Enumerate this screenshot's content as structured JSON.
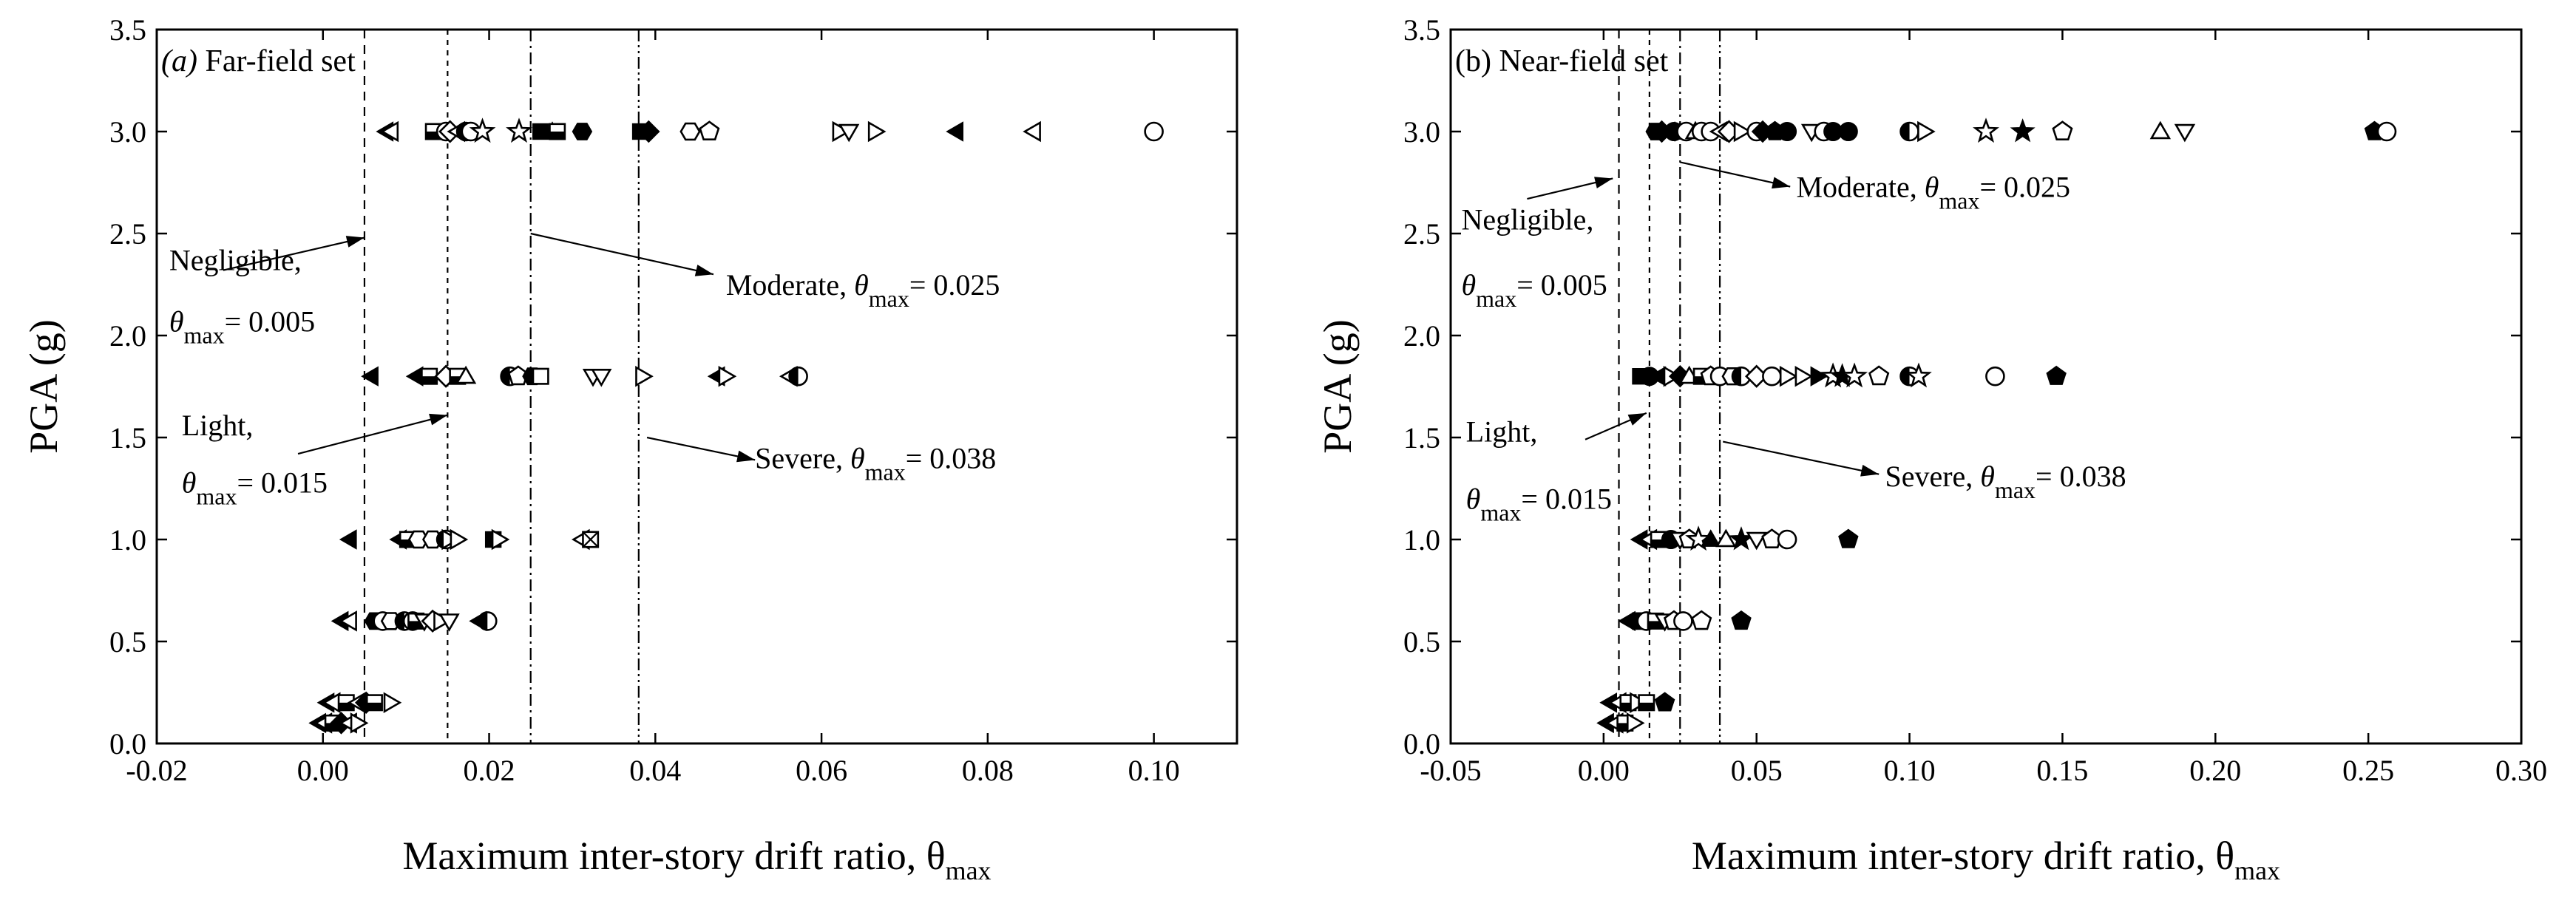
{
  "chart_data": [
    {
      "type": "scatter",
      "panel": "left",
      "title": "Far-field set",
      "title_prefix": "(a)",
      "xlabel": "Maximum inter-story drift ratio, θ",
      "xlabel_sub": "max",
      "ylabel": "PGA (g)",
      "xlim": [
        -0.02,
        0.11
      ],
      "ylim": [
        0.0,
        3.5
      ],
      "xticks": [
        -0.02,
        0.0,
        0.02,
        0.04,
        0.06,
        0.08,
        0.1
      ],
      "xtick_labels": [
        "-0.02",
        "0.00",
        "0.02",
        "0.04",
        "0.06",
        "0.08",
        "0.10"
      ],
      "yticks": [
        0.0,
        0.5,
        1.0,
        1.5,
        2.0,
        2.5,
        3.0,
        3.5
      ],
      "ytick_labels": [
        "0.0",
        "0.5",
        "1.0",
        "1.5",
        "2.0",
        "2.5",
        "3.0",
        "3.5"
      ],
      "thresholds": [
        {
          "name": "Negligible",
          "value": 0.005,
          "dash": "dash"
        },
        {
          "name": "Light",
          "value": 0.015,
          "dash": "dense-dash"
        },
        {
          "name": "Moderate",
          "value": 0.025,
          "dash": "dash-dot"
        },
        {
          "name": "Severe",
          "value": 0.038,
          "dash": "dash-dot-dot"
        }
      ],
      "annotations": [
        {
          "line1": "Negligible,",
          "theta": "θ",
          "sub": "max",
          "eq": "= 0.005",
          "layout": "stacked",
          "text_x": -0.0185,
          "text_y": 2.32,
          "theta_dy": 2.02,
          "arrow_from": [
            -0.012,
            2.32
          ],
          "arrow_to": [
            0.005,
            2.48
          ]
        },
        {
          "line1": "Light,",
          "theta": "θ",
          "sub": "max",
          "eq": "= 0.015",
          "layout": "stacked",
          "text_x": -0.017,
          "text_y": 1.51,
          "theta_dy": 1.23,
          "arrow_from": [
            -0.003,
            1.42
          ],
          "arrow_to": [
            0.015,
            1.61
          ]
        },
        {
          "line1": "Moderate, ",
          "theta": "θ",
          "sub": "max",
          "eq": "= 0.025",
          "layout": "inline",
          "text_x": 0.0485,
          "text_y": 2.2,
          "arrow_from": [
            0.025,
            2.5
          ],
          "arrow_to": [
            0.047,
            2.3
          ]
        },
        {
          "line1": "Severe, ",
          "theta": "θ",
          "sub": "max",
          "eq": "= 0.038",
          "layout": "inline",
          "text_x": 0.052,
          "text_y": 1.35,
          "arrow_from": [
            0.039,
            1.5
          ],
          "arrow_to": [
            0.052,
            1.39
          ]
        }
      ],
      "series": [
        {
          "pga": 3.0,
          "x": [
            0.0076,
            0.0082,
            0.0133,
            0.0148,
            0.0153,
            0.0162,
            0.0172,
            0.0178,
            0.0192,
            0.0236,
            0.0262,
            0.0276,
            0.0282,
            0.0312,
            0.0382,
            0.0392,
            0.0442,
            0.0465,
            0.0622,
            0.0633,
            0.0665,
            0.0762,
            0.0855,
            0.1
          ],
          "markers": [
            "tri-left-filled",
            "tri-left",
            "square-half",
            "circle",
            "diamond-open",
            "tri-left",
            "circle-left",
            "circle",
            "star",
            "star",
            "square-dark",
            "tri-up-filled",
            "square-half",
            "hexagon-filled",
            "square-dark",
            "diamond-filled",
            "hexagon",
            "pentagon",
            "tri-right",
            "tri-down",
            "tri-right",
            "tri-left-filled",
            "tri-left",
            "circle"
          ]
        },
        {
          "pga": 1.8,
          "x": [
            0.0058,
            0.0112,
            0.0128,
            0.0148,
            0.0162,
            0.0172,
            0.0225,
            0.0235,
            0.0252,
            0.0262,
            0.0325,
            0.0335,
            0.0385,
            0.0475,
            0.0485,
            0.0562,
            0.0572
          ],
          "markers": [
            "tri-left-filled",
            "tri-left-filled",
            "square-half",
            "diamond-open",
            "square-half",
            "tri-up",
            "circle-left",
            "pentagon",
            "hexagon-filled",
            "square",
            "tri-down",
            "tri-down",
            "tri-right",
            "tri-left-filled",
            "tri-right",
            "tri-left",
            "circle-left"
          ]
        },
        {
          "pga": 1.0,
          "x": [
            0.0032,
            0.0092,
            0.0102,
            0.0115,
            0.0132,
            0.0148,
            0.0152,
            0.0162,
            0.0205,
            0.0212,
            0.0312,
            0.0322
          ],
          "markers": [
            "tri-left-filled",
            "tri-left-filled",
            "square-half",
            "hexagon",
            "hexagon",
            "circle-left",
            "tri-right",
            "tri-right",
            "square-dark",
            "tri-right",
            "tri-left",
            "square-x"
          ]
        },
        {
          "pga": 0.6,
          "x": [
            0.0022,
            0.0032,
            0.0062,
            0.0072,
            0.0082,
            0.0098,
            0.0108,
            0.0112,
            0.0122,
            0.0132,
            0.0142,
            0.0152,
            0.0188,
            0.0198
          ],
          "markers": [
            "tri-left-filled",
            "tri-left",
            "hexagon-filled",
            "circle",
            "hexagon",
            "circle-left",
            "circle",
            "square-half",
            "tri-down",
            "diamond-open",
            "tri-right",
            "tri-down",
            "tri-left-filled",
            "circle-left"
          ]
        },
        {
          "pga": 0.2,
          "x": [
            0.0005,
            0.0012,
            0.0028,
            0.0042,
            0.0052,
            0.0062,
            0.0082
          ],
          "markers": [
            "tri-left-filled",
            "tri-left",
            "square-half",
            "tri-left",
            "diamond-filled",
            "square-half",
            "tri-right"
          ]
        },
        {
          "pga": 0.1,
          "x": [
            -0.0005,
            0.0002,
            0.0012,
            0.0022,
            0.0032,
            0.0042
          ],
          "markers": [
            "tri-left-filled",
            "tri-left",
            "square-half",
            "diamond-filled",
            "tri-left",
            "tri-right"
          ]
        }
      ]
    },
    {
      "type": "scatter",
      "panel": "right",
      "title": "(b) Near-field set",
      "title_prefix": "",
      "xlabel": "Maximum inter-story drift ratio, θ",
      "xlabel_sub": "max",
      "ylabel": "PGA (g)",
      "xlim": [
        -0.05,
        0.3
      ],
      "ylim": [
        0.0,
        3.5
      ],
      "xticks": [
        -0.05,
        0.0,
        0.05,
        0.1,
        0.15,
        0.2,
        0.25,
        0.3
      ],
      "xtick_labels": [
        "-0.05",
        "0.00",
        "0.05",
        "0.10",
        "0.15",
        "0.20",
        "0.25",
        "0.30"
      ],
      "yticks": [
        0.0,
        0.5,
        1.0,
        1.5,
        2.0,
        2.5,
        3.0,
        3.5
      ],
      "ytick_labels": [
        "0.0",
        "0.5",
        "1.0",
        "1.5",
        "2.0",
        "2.5",
        "3.0",
        "3.5"
      ],
      "thresholds": [
        {
          "name": "Negligible",
          "value": 0.005,
          "dash": "dash"
        },
        {
          "name": "Light",
          "value": 0.015,
          "dash": "dense-dash"
        },
        {
          "name": "Moderate",
          "value": 0.025,
          "dash": "dash-dot"
        },
        {
          "name": "Severe",
          "value": 0.038,
          "dash": "dash-dot-dot"
        }
      ],
      "annotations": [
        {
          "line1": "Negligible,",
          "theta": "θ",
          "sub": "max",
          "eq": "= 0.005",
          "layout": "stacked",
          "text_x": -0.0465,
          "text_y": 2.52,
          "theta_dy": 2.2,
          "arrow_from": [
            -0.025,
            2.67
          ],
          "arrow_to": [
            0.003,
            2.77
          ]
        },
        {
          "line1": "Light,",
          "theta": "θ",
          "sub": "max",
          "eq": "= 0.015",
          "layout": "stacked",
          "text_x": -0.045,
          "text_y": 1.48,
          "theta_dy": 1.15,
          "arrow_from": [
            -0.006,
            1.49
          ],
          "arrow_to": [
            0.014,
            1.62
          ]
        },
        {
          "line1": "Moderate, ",
          "theta": "θ",
          "sub": "max",
          "eq": "= 0.025",
          "layout": "inline",
          "text_x": 0.063,
          "text_y": 2.68,
          "arrow_from": [
            0.025,
            2.85
          ],
          "arrow_to": [
            0.061,
            2.73
          ]
        },
        {
          "line1": "Severe, ",
          "theta": "θ",
          "sub": "max",
          "eq": "= 0.038",
          "layout": "inline",
          "text_x": 0.092,
          "text_y": 1.26,
          "arrow_from": [
            0.039,
            1.48
          ],
          "arrow_to": [
            0.09,
            1.32
          ]
        }
      ],
      "series": [
        {
          "pga": 3.0,
          "x": [
            0.017,
            0.019,
            0.021,
            0.023,
            0.025,
            0.027,
            0.03,
            0.032,
            0.035,
            0.038,
            0.041,
            0.045,
            0.05,
            0.052,
            0.056,
            0.06,
            0.068,
            0.072,
            0.075,
            0.08,
            0.1,
            0.105,
            0.125,
            0.137,
            0.15,
            0.182,
            0.19,
            0.252,
            0.256
          ],
          "markers": [
            "hexagon-filled",
            "diamond-filled",
            "tri-left-filled",
            "circle-filled",
            "tri-up-filled",
            "circle",
            "tri-up",
            "circle",
            "circle",
            "tri-left",
            "diamond-open",
            "tri-right",
            "circle",
            "diamond-filled",
            "pentagon-filled",
            "circle-filled",
            "tri-down",
            "circle",
            "circle-filled",
            "circle-filled",
            "circle-left",
            "tri-right",
            "star",
            "star-filled",
            "pentagon",
            "tri-up",
            "tri-down",
            "pentagon-filled",
            "circle"
          ]
        },
        {
          "pga": 1.8,
          "x": [
            0.012,
            0.015,
            0.018,
            0.022,
            0.025,
            0.028,
            0.032,
            0.035,
            0.038,
            0.042,
            0.045,
            0.05,
            0.055,
            0.06,
            0.065,
            0.07,
            0.075,
            0.078,
            0.082,
            0.09,
            0.1,
            0.103,
            0.128,
            0.148
          ],
          "markers": [
            "square-dark",
            "circle-filled",
            "tri-left-filled",
            "tri-right",
            "diamond-filled",
            "tri-up",
            "square-half",
            "pentagon",
            "circle",
            "hexagon",
            "circle-left",
            "diamond-open",
            "circle",
            "tri-right",
            "tri-right",
            "tri-right-filled",
            "star",
            "star-filled",
            "star",
            "pentagon",
            "circle-left",
            "star",
            "circle",
            "pentagon-filled"
          ]
        },
        {
          "pga": 1.0,
          "x": [
            0.012,
            0.015,
            0.018,
            0.022,
            0.025,
            0.028,
            0.031,
            0.035,
            0.04,
            0.045,
            0.05,
            0.055,
            0.06,
            0.08
          ],
          "markers": [
            "tri-left-filled",
            "tri-left",
            "square-half",
            "circle-filled",
            "tri-down",
            "pentagon",
            "star",
            "tri-up-filled",
            "tri-up",
            "star-filled",
            "tri-down",
            "pentagon",
            "circle",
            "pentagon-filled"
          ]
        },
        {
          "pga": 0.6,
          "x": [
            0.008,
            0.011,
            0.014,
            0.017,
            0.02,
            0.023,
            0.026,
            0.032,
            0.045
          ],
          "markers": [
            "tri-left-filled",
            "hexagon-filled",
            "circle",
            "square-half",
            "tri-down",
            "pentagon",
            "circle",
            "pentagon",
            "pentagon-filled"
          ]
        },
        {
          "pga": 0.2,
          "x": [
            0.002,
            0.005,
            0.008,
            0.011,
            0.014,
            0.02
          ],
          "markers": [
            "tri-left-filled",
            "tri-left",
            "square-half",
            "tri-right",
            "square-half",
            "pentagon-filled"
          ]
        },
        {
          "pga": 0.1,
          "x": [
            0.001,
            0.004,
            0.007,
            0.01
          ],
          "markers": [
            "tri-left-filled",
            "tri-left",
            "square-half",
            "tri-right"
          ]
        }
      ]
    }
  ]
}
